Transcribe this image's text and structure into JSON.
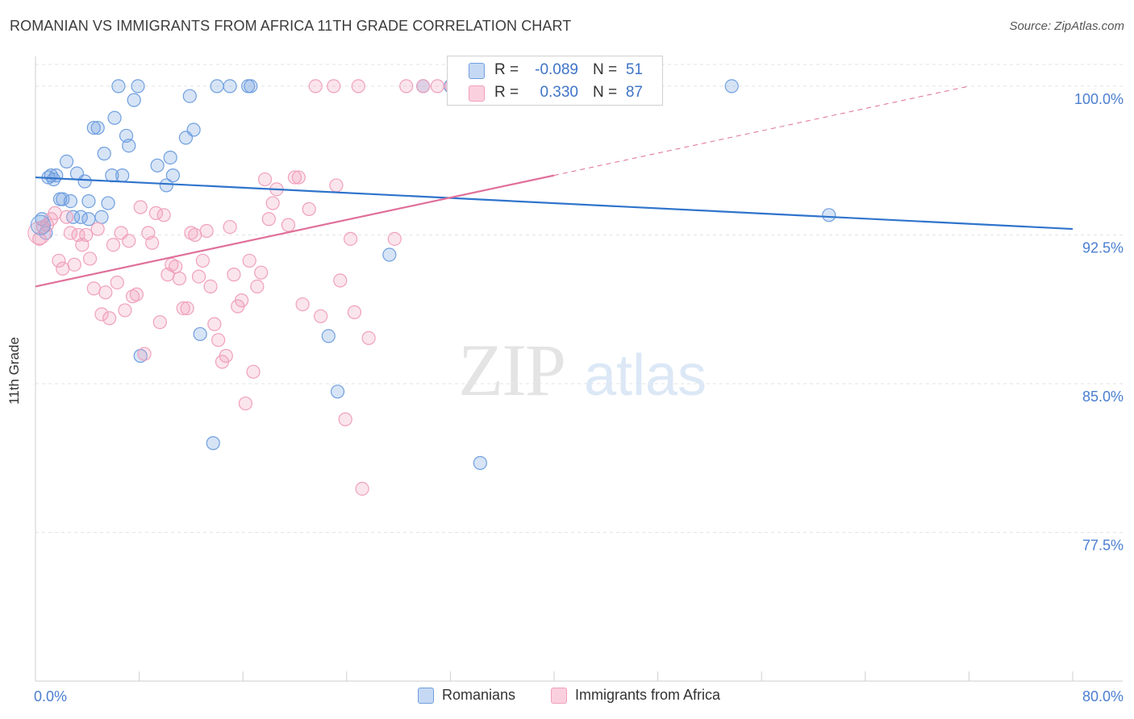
{
  "chart_data": {
    "type": "scatter",
    "title": "ROMANIAN VS IMMIGRANTS FROM AFRICA 11TH GRADE CORRELATION CHART",
    "source": "Source: ZipAtlas.com",
    "ylabel": "11th Grade",
    "xlabel": "",
    "xlim": [
      0,
      80
    ],
    "ylim": [
      70.0,
      101.5
    ],
    "x_tick_labels": [
      "0.0%",
      "80.0%"
    ],
    "y_ticks": [
      100.0,
      92.5,
      85.0,
      77.5
    ],
    "y_tick_labels": [
      "100.0%",
      "92.5%",
      "85.0%",
      "77.5%"
    ],
    "grid": true,
    "legend_position": "top-center",
    "colors": {
      "romanians": "#6f9fe0",
      "africa": "#f0a0bc",
      "romanians_line": "#2f74cc",
      "africa_line": "#e0709a",
      "tick_label": "#4a7ed0"
    },
    "watermark": {
      "zip": "ZIP",
      "atlas": "atlas"
    },
    "series": [
      {
        "name": "Romanians",
        "legend_r_label": "R =",
        "r": "-0.089",
        "legend_n_label": "N =",
        "n": "51",
        "trend": {
          "x0": 0.0,
          "y0": 95.4,
          "x1": 80.0,
          "y1": 92.8
        },
        "points": [
          [
            0.5,
            93.3
          ],
          [
            0.8,
            92.6
          ],
          [
            1.0,
            95.4
          ],
          [
            1.2,
            95.5
          ],
          [
            1.4,
            95.3
          ],
          [
            1.6,
            95.5
          ],
          [
            1.9,
            94.3
          ],
          [
            2.1,
            94.3
          ],
          [
            2.4,
            96.2
          ],
          [
            2.7,
            94.2
          ],
          [
            2.9,
            93.4
          ],
          [
            3.2,
            95.6
          ],
          [
            3.5,
            93.4
          ],
          [
            3.8,
            95.2
          ],
          [
            4.1,
            94.2
          ],
          [
            4.1,
            93.3
          ],
          [
            4.5,
            97.9
          ],
          [
            4.8,
            97.9
          ],
          [
            5.1,
            93.4
          ],
          [
            5.3,
            96.6
          ],
          [
            5.6,
            94.1
          ],
          [
            5.9,
            95.5
          ],
          [
            6.1,
            98.4
          ],
          [
            6.4,
            100.0
          ],
          [
            6.7,
            95.5
          ],
          [
            7.0,
            97.5
          ],
          [
            7.2,
            97.0
          ],
          [
            7.6,
            99.3
          ],
          [
            7.9,
            100.0
          ],
          [
            8.1,
            86.4
          ],
          [
            9.4,
            96.0
          ],
          [
            10.1,
            95.0
          ],
          [
            10.4,
            96.4
          ],
          [
            10.6,
            95.5
          ],
          [
            11.6,
            97.4
          ],
          [
            11.9,
            99.5
          ],
          [
            12.2,
            97.8
          ],
          [
            12.7,
            87.5
          ],
          [
            13.7,
            82.0
          ],
          [
            14.0,
            100.0
          ],
          [
            15.0,
            100.0
          ],
          [
            16.4,
            100.0
          ],
          [
            16.6,
            100.0
          ],
          [
            22.6,
            87.4
          ],
          [
            23.3,
            84.6
          ],
          [
            27.3,
            91.5
          ],
          [
            29.9,
            100.0
          ],
          [
            32.0,
            100.0
          ],
          [
            34.3,
            81.0
          ],
          [
            53.7,
            100.0
          ],
          [
            61.2,
            93.5
          ]
        ]
      },
      {
        "name": "Immigrants from Africa",
        "legend_r_label": "R =",
        "r": "0.330",
        "legend_n_label": "N =",
        "n": "87",
        "trend": {
          "x0": 0.0,
          "y0": 89.9,
          "x1": 40.0,
          "y1": 95.5
        },
        "trend_extension": {
          "x0": 40.0,
          "y0": 95.5,
          "x1": 72.0,
          "y1": 100.0
        },
        "points": [
          [
            0.3,
            92.3
          ],
          [
            0.6,
            92.9
          ],
          [
            0.9,
            93.0
          ],
          [
            1.2,
            93.3
          ],
          [
            1.5,
            93.6
          ],
          [
            1.8,
            91.2
          ],
          [
            2.1,
            90.8
          ],
          [
            2.4,
            93.4
          ],
          [
            2.7,
            92.6
          ],
          [
            3.0,
            91.0
          ],
          [
            3.3,
            92.5
          ],
          [
            3.6,
            92.0
          ],
          [
            3.9,
            92.5
          ],
          [
            4.2,
            91.3
          ],
          [
            4.5,
            89.8
          ],
          [
            4.8,
            92.8
          ],
          [
            5.1,
            88.5
          ],
          [
            5.4,
            89.6
          ],
          [
            5.7,
            88.3
          ],
          [
            6.0,
            92.0
          ],
          [
            6.3,
            90.1
          ],
          [
            6.6,
            92.6
          ],
          [
            6.9,
            88.7
          ],
          [
            7.2,
            92.2
          ],
          [
            7.5,
            89.4
          ],
          [
            7.8,
            89.5
          ],
          [
            8.1,
            93.9
          ],
          [
            8.4,
            86.5
          ],
          [
            8.7,
            92.6
          ],
          [
            9.0,
            92.1
          ],
          [
            9.3,
            93.6
          ],
          [
            9.6,
            88.1
          ],
          [
            9.9,
            93.5
          ],
          [
            10.2,
            90.5
          ],
          [
            10.5,
            91.0
          ],
          [
            10.8,
            90.9
          ],
          [
            11.1,
            90.3
          ],
          [
            11.4,
            88.8
          ],
          [
            11.7,
            88.8
          ],
          [
            12.0,
            92.6
          ],
          [
            12.3,
            92.5
          ],
          [
            12.6,
            90.4
          ],
          [
            12.9,
            91.2
          ],
          [
            13.2,
            92.7
          ],
          [
            13.5,
            89.9
          ],
          [
            13.8,
            88.0
          ],
          [
            14.1,
            87.2
          ],
          [
            14.4,
            86.1
          ],
          [
            14.7,
            86.4
          ],
          [
            15.0,
            92.9
          ],
          [
            15.3,
            90.5
          ],
          [
            15.6,
            88.9
          ],
          [
            15.9,
            89.2
          ],
          [
            16.2,
            84.0
          ],
          [
            16.5,
            91.2
          ],
          [
            16.8,
            85.6
          ],
          [
            17.1,
            89.9
          ],
          [
            17.4,
            90.6
          ],
          [
            17.7,
            95.3
          ],
          [
            18.0,
            93.3
          ],
          [
            18.3,
            94.1
          ],
          [
            18.6,
            94.8
          ],
          [
            19.5,
            93.0
          ],
          [
            20.0,
            95.4
          ],
          [
            20.3,
            95.4
          ],
          [
            20.6,
            89.0
          ],
          [
            21.1,
            93.8
          ],
          [
            21.6,
            100.0
          ],
          [
            22.0,
            88.4
          ],
          [
            23.0,
            100.0
          ],
          [
            23.2,
            95.0
          ],
          [
            23.5,
            90.2
          ],
          [
            23.9,
            83.2
          ],
          [
            24.3,
            92.3
          ],
          [
            24.6,
            88.6
          ],
          [
            24.9,
            100.0
          ],
          [
            25.2,
            79.7
          ],
          [
            25.7,
            87.3
          ],
          [
            27.7,
            92.3
          ],
          [
            28.6,
            100.0
          ],
          [
            29.9,
            100.0
          ],
          [
            31.0,
            100.0
          ],
          [
            32.1,
            100.0
          ],
          [
            33.1,
            100.0
          ],
          [
            34.1,
            100.0
          ],
          [
            35.4,
            100.0
          ],
          [
            36.4,
            100.0
          ]
        ]
      }
    ]
  }
}
